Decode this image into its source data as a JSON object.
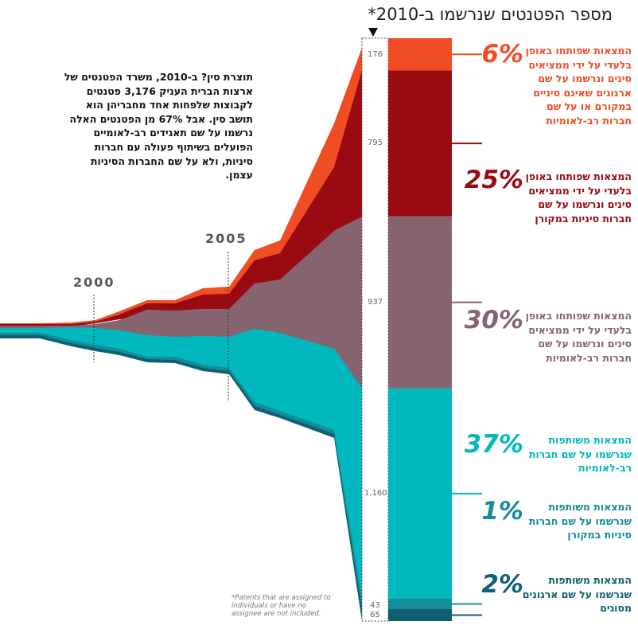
{
  "page_title": "מספר הפטנטים שנרשמו ב-2010*",
  "intro_text": "תוצרת סין? ב-2010, משרד הפטנטים של ארצות הברית העניק 3,176 פטנטים לקבוצות שלפחות אחד מחבריהן הוא תושב סין. אבל 67% מן הפטנטים האלה נרשמו על שם תאגידים רב-לאומיים הפועלים בשיתוף פעולה עם חברות סיניות, ולא על שם החברות הסיניות עצמן.",
  "footnote": "*Patents that are assigned to individuals or have no assignee are not included.",
  "colors": {
    "orange": "#f04d25",
    "dark_red": "#990a12",
    "mauve": "#856470",
    "teal": "#00b8bd",
    "teal_mid": "#138d97",
    "teal_dark": "#0f5f73"
  },
  "chart_data": {
    "type": "area",
    "title": "מספר הפטנטים שנרשמו ב-2010*",
    "x_markers": [
      "2000",
      "2005"
    ],
    "total_2010": 3176,
    "categories": [
      {
        "key": "orange",
        "value": 176,
        "label": "176",
        "pct": "6%",
        "desc": "המצאות שפותחו באופן בלעדי על ידי ממציאים סינים ונרשמו על שם ארגונים שאינם סיניים במקורם או על שם חברות רב-לאומיות"
      },
      {
        "key": "dark_red",
        "value": 795,
        "label": "795",
        "pct": "25%",
        "desc": "המצאות שפותחו באופן בלעדי על ידי ממציאים סינים ונרשמו על שם חברות סיניות במקורן"
      },
      {
        "key": "mauve",
        "value": 937,
        "label": "937",
        "pct": "30%",
        "desc": "המצאות שפותחו באופן בלעדי על ידי ממציאים סינים ונרשמו על שם חברות רב-לאומיות"
      },
      {
        "key": "teal",
        "value": 1160,
        "label": "1,160",
        "pct": "37%",
        "desc": "המצאות משותפות שנרשמו על שם חברות רב-לאומיות"
      },
      {
        "key": "teal_mid",
        "value": 43,
        "label": "43",
        "pct": "1%",
        "desc": "המצאות משותפות שנרשמו על שם חברות סיניות במקורן"
      },
      {
        "key": "teal_dark",
        "value": 65,
        "label": "65",
        "pct": "2%",
        "desc": "המצאות משותפות שנרשמו על שם ארגונים מסוגים"
      }
    ]
  }
}
